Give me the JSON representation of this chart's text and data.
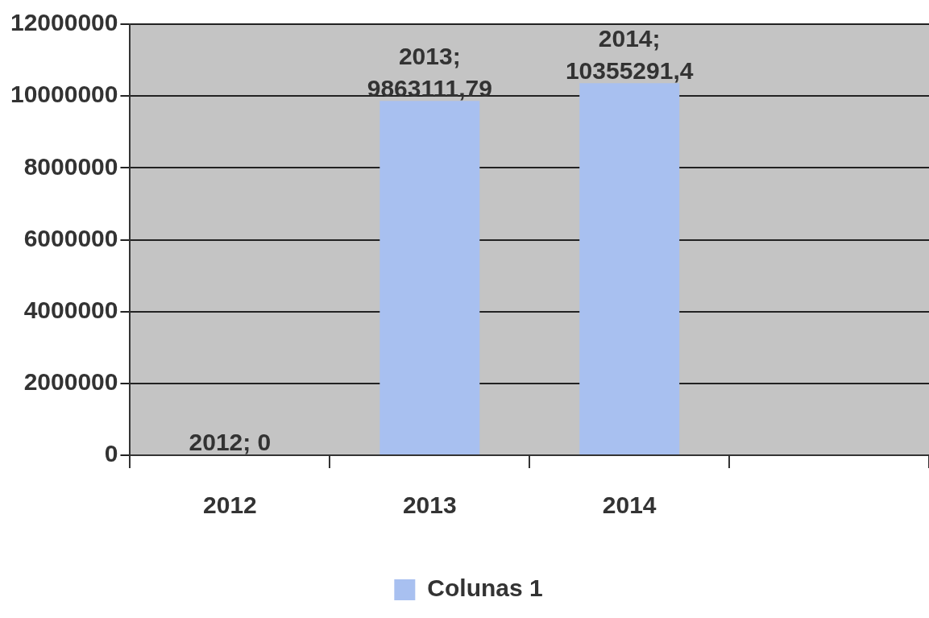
{
  "chart_data": {
    "type": "bar",
    "categories": [
      "2012",
      "2013",
      "2014",
      null
    ],
    "series": [
      {
        "name": "Colunas 1",
        "color": "#a8c0f0",
        "values": [
          0,
          9863111.79,
          10355291.4,
          null
        ],
        "value_labels": [
          "2012; 0",
          "2013; 9863111,79",
          "2014; 10355291,4",
          null
        ]
      }
    ],
    "ylim": [
      0,
      12000000
    ],
    "yticks": [
      0,
      2000000,
      4000000,
      6000000,
      8000000,
      10000000,
      12000000
    ],
    "grid": "y",
    "legend": "bottom"
  }
}
